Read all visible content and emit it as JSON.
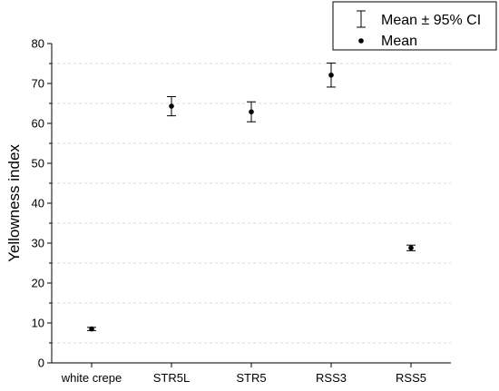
{
  "chart_data": {
    "type": "scatter",
    "title": "",
    "xlabel": "",
    "ylabel": "Yellowness index",
    "ylim": [
      0,
      80
    ],
    "yticks": [
      0,
      10,
      20,
      30,
      40,
      50,
      60,
      70,
      80
    ],
    "grid": true,
    "legend_position": "top-right",
    "categories": [
      "white crepe",
      "STR5L",
      "STR5",
      "RSS3",
      "RSS5"
    ],
    "series": [
      {
        "name": "Mean",
        "values": [
          8.5,
          64.3,
          62.9,
          72.1,
          28.8
        ],
        "ci_lower": [
          8.1,
          61.9,
          60.4,
          69.1,
          28.1
        ],
        "ci_upper": [
          8.9,
          66.7,
          65.4,
          75.1,
          29.5
        ]
      }
    ],
    "legend": [
      {
        "label": "Mean ± 95% CI",
        "symbol": "error-bar"
      },
      {
        "label": "Mean",
        "symbol": "dot"
      }
    ],
    "colors": {
      "marker": "#000000",
      "grid": "#cccccc",
      "axis": "#000000"
    }
  }
}
